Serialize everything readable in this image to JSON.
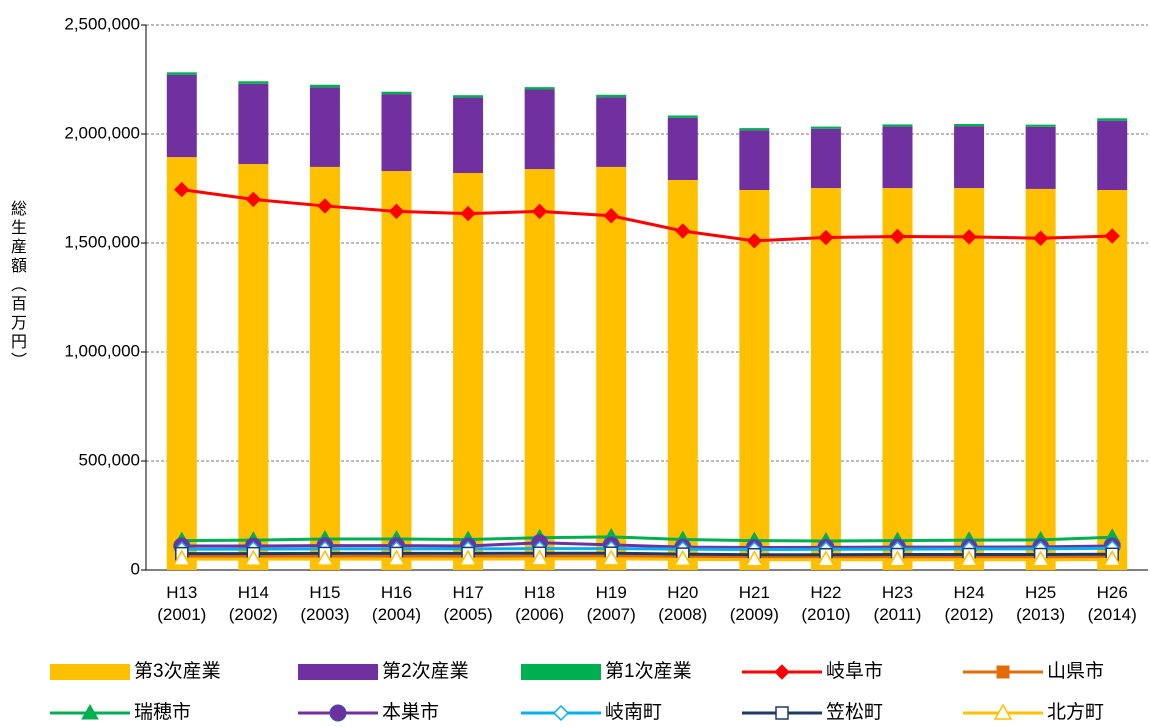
{
  "chart_data": {
    "type": "combo",
    "y_label": "総生産額（百万円）",
    "categories": [
      "H13\n(2001)",
      "H14\n(2002)",
      "H15\n(2003)",
      "H16\n(2004)",
      "H17\n(2005)",
      "H18\n(2006)",
      "H19\n(2007)",
      "H20\n(2008)",
      "H21\n(2009)",
      "H22\n(2010)",
      "H23\n(2011)",
      "H24\n(2012)",
      "H25\n(2013)",
      "H26\n(2014)"
    ],
    "ylim": [
      0,
      2500000
    ],
    "yticks": [
      0,
      {
        "value": 500000,
        "label": "500,000"
      },
      {
        "value": 1000000,
        "label": "1,000,000"
      },
      {
        "value": 1500000,
        "label": "1,500,000"
      },
      {
        "value": 2000000,
        "label": "2,000,000"
      },
      {
        "value": 2500000,
        "label": "2,500,000"
      }
    ],
    "grid": true,
    "series": [
      {
        "name": "第3次産業",
        "type": "bar",
        "color": "#FFC000",
        "values": [
          1894000,
          1862000,
          1849000,
          1830000,
          1821000,
          1839000,
          1849000,
          1789000,
          1743000,
          1752000,
          1752000,
          1752000,
          1748000,
          1743000
        ]
      },
      {
        "name": "第2次産業",
        "type": "bar",
        "color": "#7030A0",
        "values": [
          377000,
          368000,
          365000,
          353000,
          346000,
          365000,
          320000,
          285000,
          274000,
          272000,
          282000,
          284000,
          285000,
          318000
        ]
      },
      {
        "name": "第1次産業",
        "type": "bar",
        "color": "#00B050",
        "values": [
          12000,
          12000,
          12000,
          11000,
          11000,
          11000,
          11000,
          11000,
          10000,
          10000,
          10000,
          10000,
          10000,
          11000
        ]
      },
      {
        "name": "岐阜市",
        "type": "line",
        "color": "#FF0000",
        "marker": "diamond",
        "values": [
          1745000,
          1700000,
          1670000,
          1645000,
          1635000,
          1645000,
          1625000,
          1555000,
          1510000,
          1525000,
          1530000,
          1528000,
          1522000,
          1532000
        ]
      },
      {
        "name": "山県市",
        "type": "line",
        "color": "#E36C09",
        "marker": "square",
        "values": [
          62000,
          62000,
          63000,
          63000,
          62000,
          63000,
          63000,
          60000,
          58000,
          58000,
          58000,
          58000,
          58000,
          59000
        ]
      },
      {
        "name": "瑞穂市",
        "type": "line",
        "color": "#00B050",
        "marker": "triangle",
        "values": [
          135000,
          137000,
          142000,
          142000,
          140000,
          148000,
          152000,
          140000,
          135000,
          133000,
          135000,
          137000,
          138000,
          150000
        ]
      },
      {
        "name": "本巣市",
        "type": "line",
        "color": "#7030A0",
        "marker": "circle",
        "values": [
          110000,
          110000,
          112000,
          112000,
          110000,
          125000,
          115000,
          105000,
          103000,
          104000,
          105000,
          105000,
          106000,
          110000
        ]
      },
      {
        "name": "岐南町",
        "type": "line",
        "color": "#00B0F0",
        "marker": "diamond-open",
        "values": [
          95000,
          96000,
          97000,
          97000,
          97000,
          98000,
          98000,
          96000,
          94000,
          95000,
          96000,
          97000,
          97000,
          100000
        ]
      },
      {
        "name": "笠松町",
        "type": "line",
        "color": "#1F3864",
        "marker": "square-open",
        "values": [
          75000,
          75000,
          76000,
          76000,
          76000,
          77000,
          77000,
          73000,
          70000,
          70000,
          71000,
          71000,
          71000,
          72000
        ]
      },
      {
        "name": "北方町",
        "type": "line",
        "color": "#FFC000",
        "marker": "triangle-open",
        "values": [
          50000,
          50000,
          50000,
          50000,
          50000,
          51000,
          51000,
          49000,
          47000,
          47000,
          47000,
          47000,
          47000,
          48000
        ]
      }
    ]
  }
}
